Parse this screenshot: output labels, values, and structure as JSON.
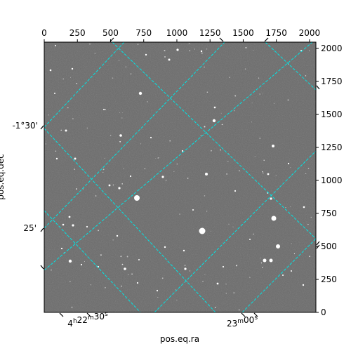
{
  "chart_data": {
    "type": "image",
    "colors": {
      "background": "#6b6b6b",
      "grid": "#00e5e5",
      "frame": "#000000"
    },
    "pixel_axes": {
      "x": {
        "range": [
          0,
          2048
        ],
        "ticks": [
          0,
          250,
          500,
          750,
          1000,
          1250,
          1500,
          1750,
          2000
        ]
      },
      "y": {
        "range": [
          0,
          2048
        ],
        "ticks": [
          0,
          250,
          500,
          750,
          1000,
          1250,
          1500,
          1750,
          2000
        ]
      }
    },
    "world_axes": {
      "xlabel": "pos.eq.ra",
      "ylabel": "pos.eq.dec",
      "ra_tick_labels": [
        {
          "text": "4h22m30s",
          "sup": [
            "h",
            "m",
            "s"
          ]
        },
        {
          "text": "23m00s",
          "sup": [
            "m",
            "s"
          ]
        }
      ],
      "dec_tick_labels": [
        "-1°30'",
        "25'"
      ]
    },
    "grid": "on",
    "grid_line_style": "dashed"
  }
}
